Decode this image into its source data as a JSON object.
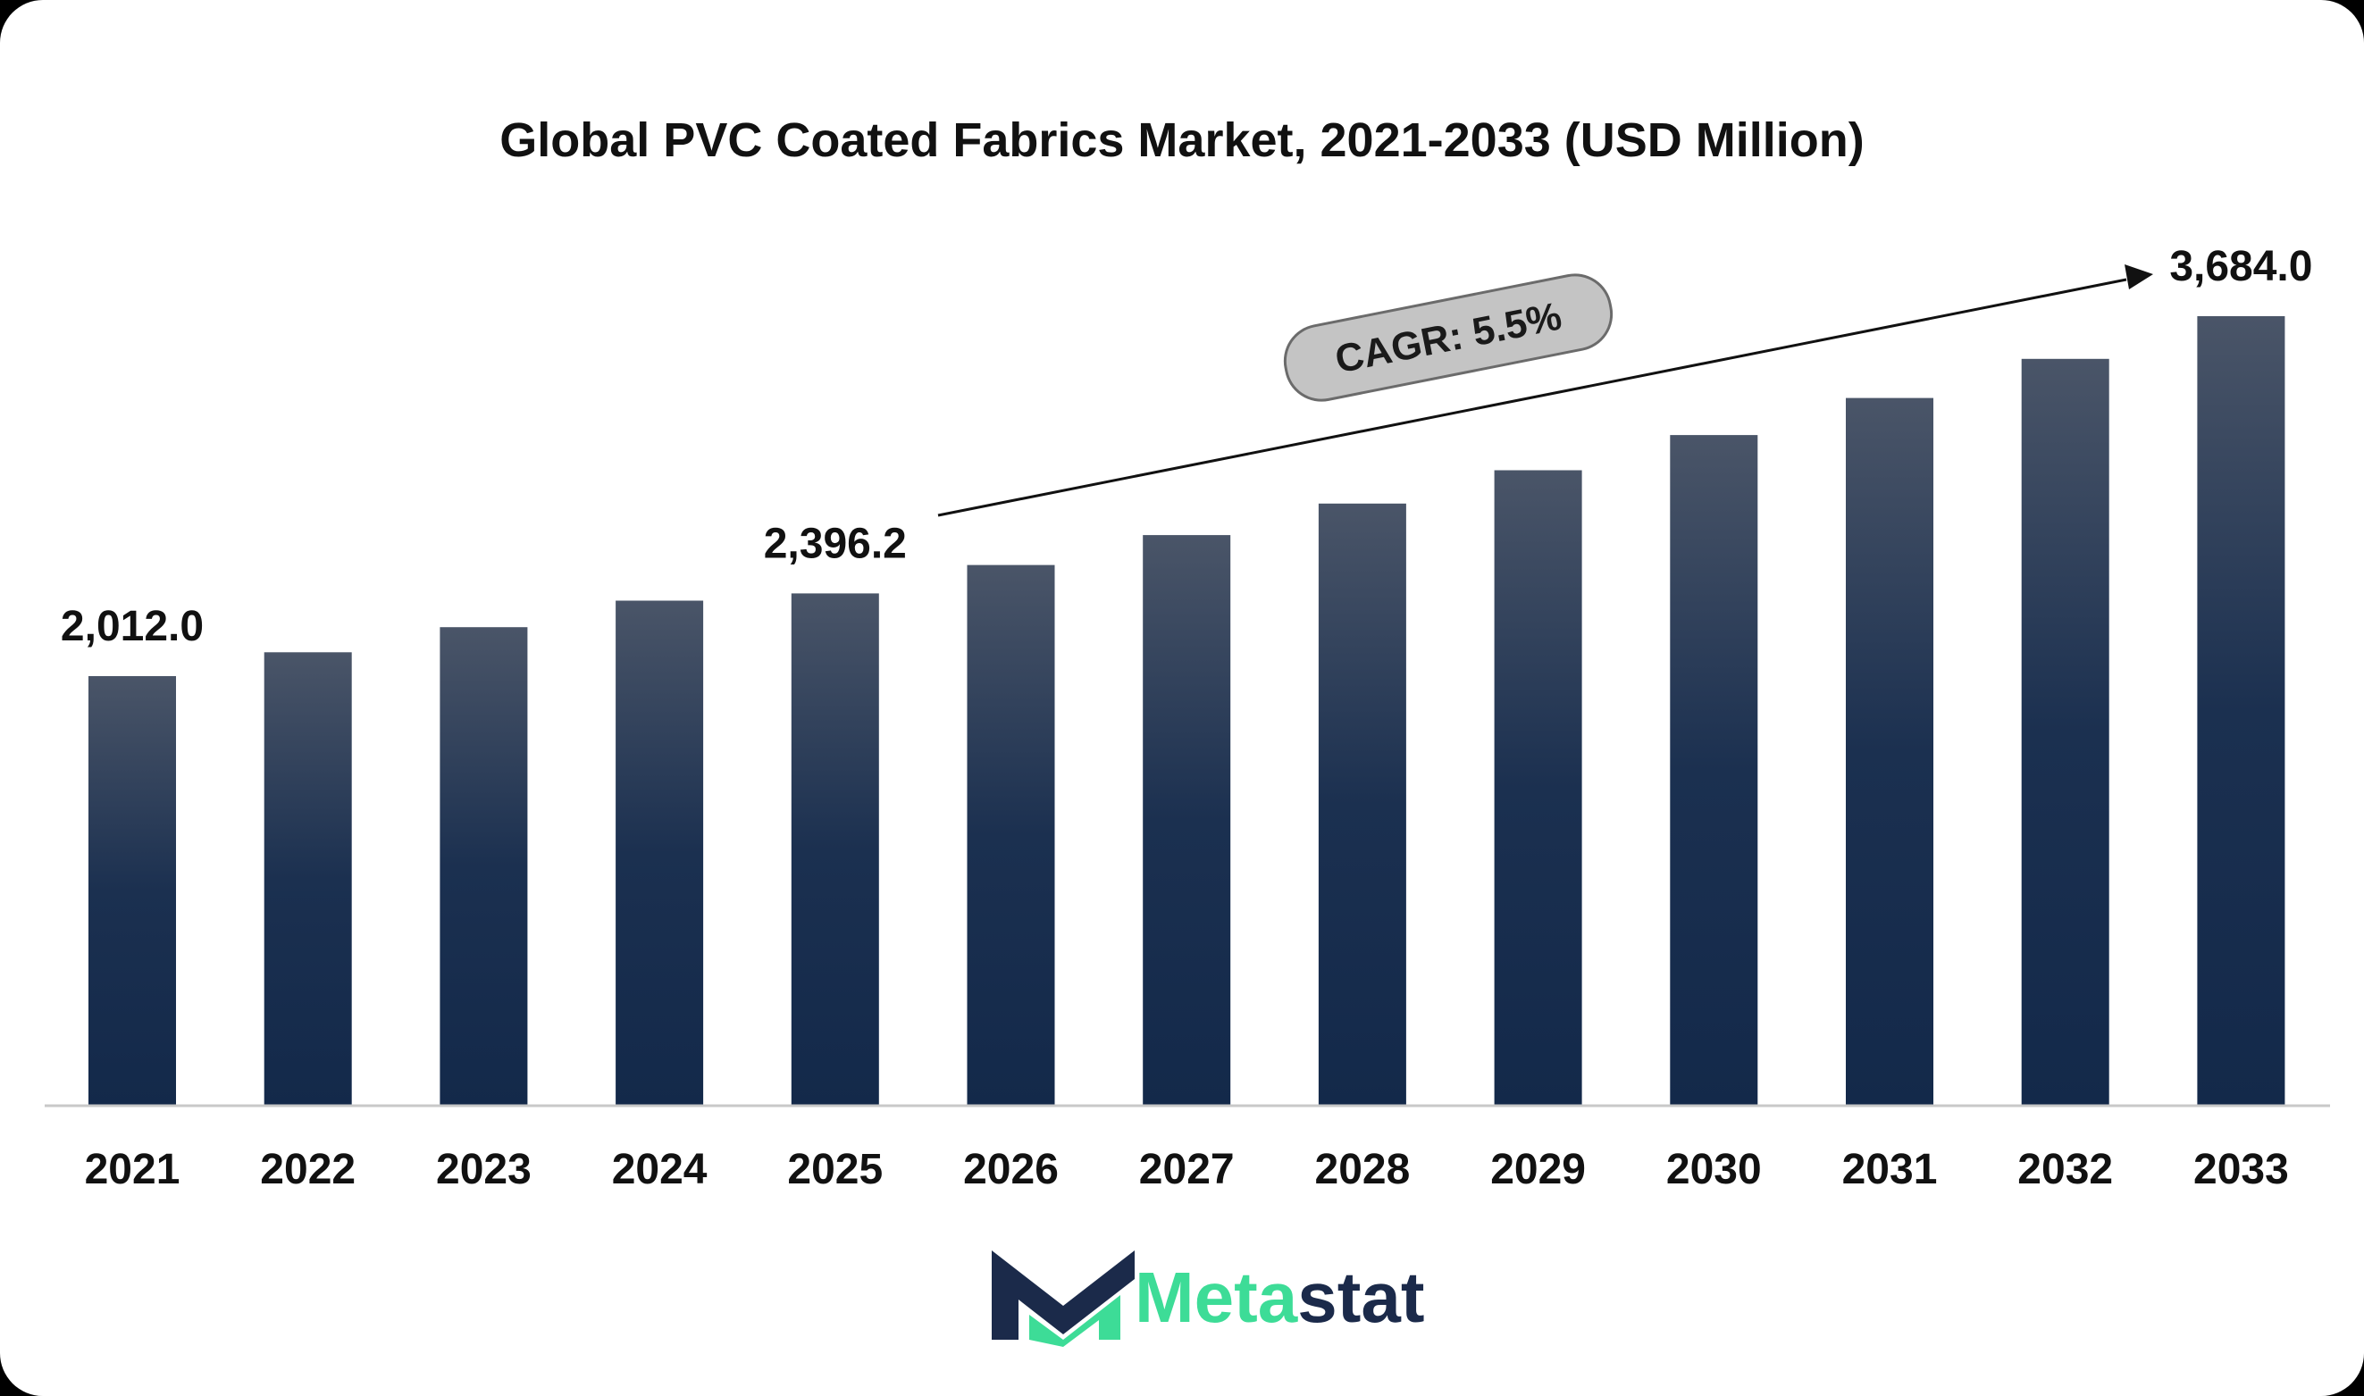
{
  "chart_data": {
    "type": "bar",
    "title": "Global PVC Coated Fabrics Market, 2021-2033 (USD Million)",
    "categories": [
      "2021",
      "2022",
      "2023",
      "2024",
      "2025",
      "2026",
      "2027",
      "2028",
      "2029",
      "2030",
      "2031",
      "2032",
      "2033"
    ],
    "values": [
      2012.0,
      2122.6,
      2239.4,
      2362.6,
      2396.2,
      2528.0,
      2667.0,
      2813.7,
      2968.5,
      3131.7,
      3304.0,
      3485.7,
      3684.0
    ],
    "data_labels": [
      {
        "index": 0,
        "text": "2,012.0"
      },
      {
        "index": 4,
        "text": "2,396.2"
      },
      {
        "index": 12,
        "text": "3,684.0"
      }
    ],
    "annotation": {
      "text": "CAGR: 5.5%"
    },
    "ylim": [
      0,
      3750
    ],
    "grid": false,
    "colors": {
      "bar_top": "#4a5568",
      "bar_bottom": "#13294a"
    }
  },
  "brand": {
    "logo_prefix": "Meta",
    "logo_suffix": "stat",
    "logo_prefix_color": "#3ddc97",
    "logo_suffix_color": "#1b2a4a",
    "logo_icon": "metastat-m-icon"
  }
}
